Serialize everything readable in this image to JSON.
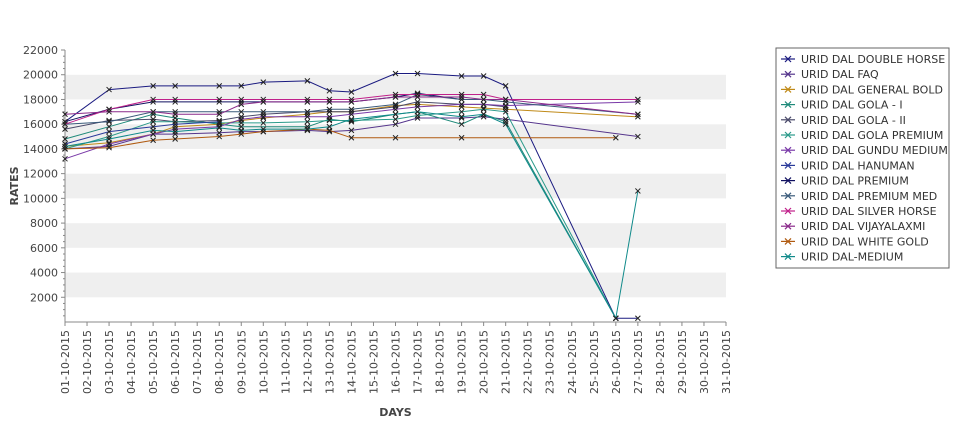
{
  "chart_data": {
    "type": "line",
    "title": "",
    "xlabel": "DAYS",
    "ylabel": "RATES",
    "ylim": [
      0,
      22000
    ],
    "yticks": [
      2000,
      4000,
      6000,
      8000,
      10000,
      12000,
      14000,
      16000,
      18000,
      20000,
      22000
    ],
    "grid": "alternating horizontal bands",
    "legend_position": "right",
    "categories": [
      "01-10-2015",
      "02-10-2015",
      "03-10-2015",
      "04-10-2015",
      "05-10-2015",
      "06-10-2015",
      "07-10-2015",
      "08-10-2015",
      "09-10-2015",
      "10-10-2015",
      "11-10-2015",
      "12-10-2015",
      "13-10-2015",
      "14-10-2015",
      "15-10-2015",
      "16-10-2015",
      "17-10-2015",
      "18-10-2015",
      "19-10-2015",
      "20-10-2015",
      "21-10-2015",
      "22-10-2015",
      "23-10-2015",
      "24-10-2015",
      "25-10-2015",
      "26-10-2015",
      "27-10-2015",
      "28-10-2015",
      "29-10-2015",
      "30-10-2015",
      "31-10-2015"
    ],
    "series": [
      {
        "name": "URID DAL DOUBLE HORSE",
        "color": "#1a1a80",
        "values": [
          16200,
          null,
          18800,
          null,
          19100,
          19100,
          null,
          19100,
          19100,
          19400,
          null,
          19500,
          18700,
          18600,
          null,
          20100,
          20100,
          null,
          19900,
          19900,
          19100,
          null,
          null,
          null,
          null,
          300,
          300,
          null,
          null,
          null,
          null
        ]
      },
      {
        "name": "URID DAL FAQ",
        "color": "#55358c",
        "values": [
          14000,
          null,
          14200,
          null,
          15200,
          15200,
          null,
          15300,
          15400,
          15400,
          null,
          15500,
          15400,
          15500,
          null,
          16000,
          16500,
          null,
          16500,
          16600,
          16400,
          null,
          null,
          null,
          null,
          null,
          15000,
          null,
          null,
          null,
          null
        ]
      },
      {
        "name": "URID DAL GENERAL BOLD",
        "color": "#c08a18",
        "values": [
          14200,
          null,
          14500,
          null,
          15200,
          15800,
          null,
          16000,
          16300,
          16500,
          null,
          16800,
          17000,
          17000,
          null,
          17500,
          17600,
          null,
          17400,
          17300,
          17200,
          null,
          null,
          null,
          null,
          null,
          16600,
          null,
          null,
          null,
          null
        ]
      },
      {
        "name": "URID DAL GOLA - I",
        "color": "#1f8a7a",
        "values": [
          14800,
          null,
          15800,
          null,
          16800,
          16500,
          null,
          16000,
          15800,
          null,
          null,
          15800,
          16400,
          16200,
          null,
          16800,
          17000,
          null,
          16000,
          16800,
          16200,
          null,
          null,
          null,
          null,
          300,
          null,
          null,
          null,
          null,
          null
        ]
      },
      {
        "name": "URID DAL GOLA - II",
        "color": "#4a4a6a",
        "values": [
          15600,
          null,
          16300,
          null,
          16400,
          16200,
          null,
          16300,
          16600,
          16800,
          null,
          17000,
          17000,
          17000,
          null,
          17400,
          17800,
          null,
          17600,
          17600,
          17400,
          null,
          null,
          null,
          null,
          null,
          null,
          null,
          null,
          null,
          null
        ]
      },
      {
        "name": "URID DAL GOLA PREMIUM",
        "color": "#2a9a8a",
        "values": [
          14000,
          null,
          15000,
          null,
          16200,
          16200,
          null,
          16100,
          16100,
          16100,
          null,
          16200,
          16300,
          16300,
          null,
          16400,
          16700,
          null,
          17000,
          17200,
          17000,
          null,
          null,
          null,
          null,
          300,
          null,
          null,
          null,
          null,
          null
        ]
      },
      {
        "name": "URID DAL GUNDU MEDIUM",
        "color": "#7a3aa8",
        "values": [
          13200,
          null,
          14400,
          null,
          15200,
          15600,
          null,
          15800,
          16400,
          16600,
          null,
          16600,
          16600,
          16800,
          null,
          17200,
          17400,
          null,
          17600,
          17600,
          17500,
          null,
          null,
          null,
          null,
          null,
          17800,
          null,
          null,
          null,
          null
        ]
      },
      {
        "name": "URID DAL HANUMAN",
        "color": "#2a3a9a",
        "values": [
          14400,
          null,
          15400,
          null,
          15800,
          16000,
          null,
          16200,
          null,
          null,
          null,
          null,
          null,
          null,
          null,
          null,
          null,
          null,
          null,
          null,
          null,
          null,
          null,
          null,
          null,
          null,
          null,
          null,
          null,
          null,
          null
        ]
      },
      {
        "name": "URID DAL PREMIUM",
        "color": "#101060",
        "values": [
          16200,
          null,
          17200,
          null,
          17800,
          17800,
          null,
          17800,
          17800,
          17800,
          null,
          17800,
          17800,
          17800,
          null,
          18200,
          18500,
          null,
          18000,
          18000,
          18000,
          null,
          null,
          null,
          null,
          null,
          18000,
          null,
          null,
          null,
          null
        ]
      },
      {
        "name": "URID DAL PREMIUM MED",
        "color": "#3a5a7a",
        "values": [
          16000,
          null,
          16200,
          null,
          17000,
          17000,
          null,
          17000,
          17000,
          17000,
          null,
          17000,
          17200,
          17200,
          null,
          17600,
          18400,
          null,
          18000,
          18000,
          17800,
          null,
          null,
          null,
          null,
          null,
          16800,
          null,
          null,
          null,
          null
        ]
      },
      {
        "name": "URID DAL SILVER HORSE",
        "color": "#c0208a",
        "values": [
          16000,
          null,
          17200,
          null,
          18000,
          18000,
          null,
          18000,
          18000,
          18000,
          null,
          18000,
          18000,
          18000,
          null,
          18400,
          18400,
          null,
          18400,
          18400,
          18000,
          null,
          null,
          null,
          null,
          null,
          18000,
          null,
          null,
          null,
          null
        ]
      },
      {
        "name": "URID DAL VIJAYALAXMI",
        "color": "#8a2a8a",
        "values": [
          16800,
          null,
          17000,
          null,
          17000,
          16800,
          null,
          16800,
          17600,
          17800,
          null,
          17800,
          17800,
          17800,
          null,
          18200,
          18200,
          null,
          18200,
          18000,
          18000,
          null,
          null,
          null,
          null,
          null,
          16800,
          null,
          null,
          null,
          null
        ]
      },
      {
        "name": "URID DAL WHITE GOLD",
        "color": "#b05a10",
        "values": [
          14000,
          null,
          14100,
          null,
          14700,
          14800,
          null,
          15000,
          15200,
          15400,
          null,
          15600,
          15500,
          14900,
          null,
          14900,
          null,
          null,
          14900,
          null,
          null,
          null,
          null,
          null,
          null,
          14900,
          null,
          null,
          null,
          null,
          null
        ]
      },
      {
        "name": "URID DAL-MEDIUM",
        "color": "#108a8a",
        "values": [
          14200,
          null,
          14800,
          null,
          15500,
          15400,
          null,
          15700,
          15500,
          15600,
          null,
          15600,
          15800,
          16400,
          null,
          16800,
          17000,
          null,
          16600,
          16800,
          16000,
          null,
          null,
          null,
          null,
          300,
          10600,
          null,
          null,
          null,
          null
        ]
      }
    ]
  }
}
